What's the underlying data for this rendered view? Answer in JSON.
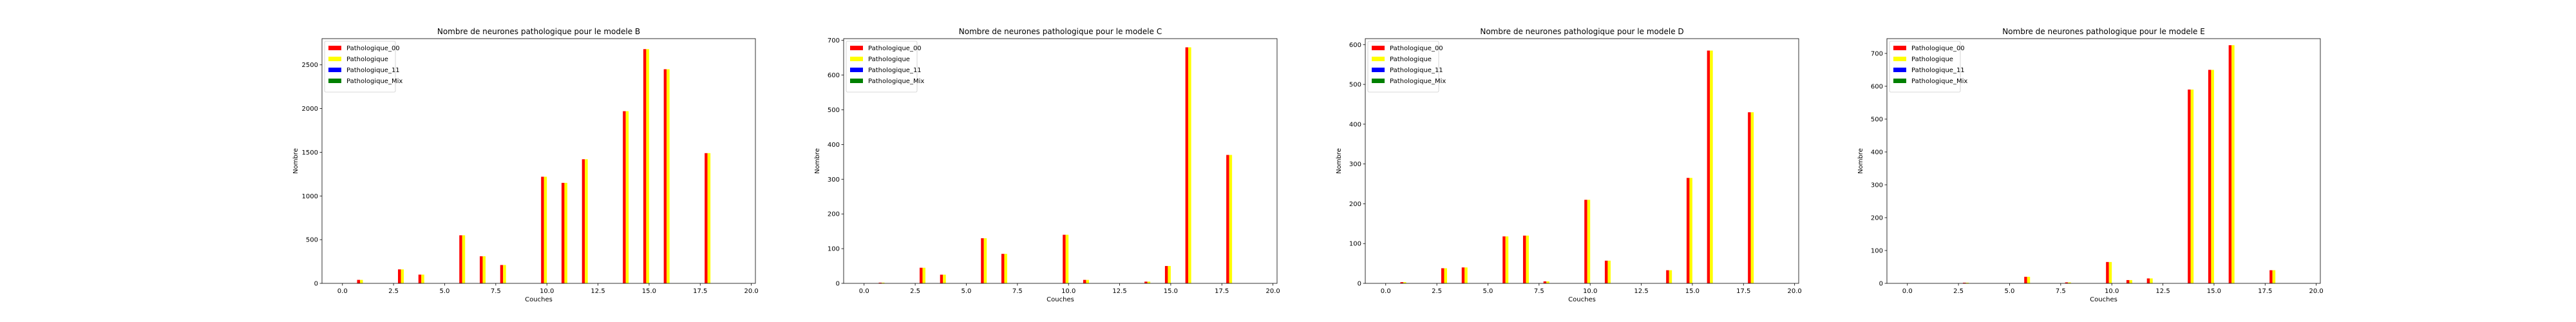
{
  "chart_data": [
    {
      "type": "bar",
      "title": "Nombre de neurones pathologique pour le modele B",
      "xlabel": "Couches",
      "ylabel": "Nombre",
      "xlim": [
        -1,
        20.2
      ],
      "ylim": [
        0,
        2800
      ],
      "xticks": [
        0,
        2.5,
        5,
        7.5,
        10,
        12.5,
        15,
        17.5,
        20
      ],
      "xtick_labels": [
        "0.0",
        "2.5",
        "5.0",
        "7.5",
        "10.0",
        "12.5",
        "15.0",
        "17.5",
        "20.0"
      ],
      "yticks": [
        0,
        500,
        1000,
        1500,
        2000,
        2500
      ],
      "ytick_labels": [
        "0",
        "500",
        "1000",
        "1500",
        "2000",
        "2500"
      ],
      "legend_position": "top-left",
      "layers": [
        0,
        1,
        2,
        3,
        4,
        5,
        6,
        7,
        8,
        9,
        10,
        11,
        12,
        13,
        14,
        15,
        16,
        17,
        18
      ],
      "series": [
        {
          "name": "Pathologique_00",
          "color": "#ff0000",
          "values": [
            0,
            40,
            0,
            160,
            100,
            0,
            550,
            310,
            210,
            0,
            1220,
            1150,
            1420,
            0,
            1970,
            2680,
            2450,
            0,
            1490
          ]
        },
        {
          "name": "Pathologique",
          "color": "#ffff00",
          "values": [
            0,
            40,
            0,
            160,
            100,
            0,
            550,
            310,
            210,
            0,
            1220,
            1150,
            1420,
            0,
            1970,
            2680,
            2450,
            0,
            1490
          ]
        },
        {
          "name": "Pathologique_11",
          "color": "#0000ff",
          "values": [
            0,
            0,
            0,
            0,
            0,
            0,
            0,
            0,
            0,
            0,
            0,
            0,
            0,
            0,
            0,
            0,
            0,
            0,
            0
          ]
        },
        {
          "name": "Pathologique_Mix",
          "color": "#008000",
          "values": [
            0,
            0,
            0,
            0,
            0,
            0,
            0,
            0,
            0,
            0,
            0,
            0,
            0,
            0,
            0,
            0,
            0,
            0,
            0
          ]
        }
      ]
    },
    {
      "type": "bar",
      "title": "Nombre de neurones pathologique pour le modele C",
      "xlabel": "Couches",
      "ylabel": "Nombre",
      "xlim": [
        -1,
        20.2
      ],
      "ylim": [
        0,
        705
      ],
      "xticks": [
        0,
        2.5,
        5,
        7.5,
        10,
        12.5,
        15,
        17.5,
        20
      ],
      "xtick_labels": [
        "0.0",
        "2.5",
        "5.0",
        "7.5",
        "10.0",
        "12.5",
        "15.0",
        "17.5",
        "20.0"
      ],
      "yticks": [
        0,
        100,
        200,
        300,
        400,
        500,
        600,
        700
      ],
      "ytick_labels": [
        "0",
        "100",
        "200",
        "300",
        "400",
        "500",
        "600",
        "700"
      ],
      "legend_position": "top-left",
      "layers": [
        0,
        1,
        2,
        3,
        4,
        5,
        6,
        7,
        8,
        9,
        10,
        11,
        12,
        13,
        14,
        15,
        16,
        17,
        18
      ],
      "series": [
        {
          "name": "Pathologique_00",
          "color": "#ff0000",
          "values": [
            0,
            2,
            0,
            45,
            25,
            0,
            130,
            85,
            0,
            0,
            140,
            10,
            0,
            0,
            5,
            50,
            680,
            0,
            370
          ]
        },
        {
          "name": "Pathologique",
          "color": "#ffff00",
          "values": [
            0,
            2,
            0,
            45,
            25,
            0,
            130,
            85,
            0,
            0,
            140,
            10,
            0,
            0,
            5,
            50,
            680,
            0,
            370
          ]
        },
        {
          "name": "Pathologique_11",
          "color": "#0000ff",
          "values": [
            0,
            0,
            0,
            0,
            0,
            0,
            0,
            0,
            0,
            0,
            0,
            0,
            0,
            0,
            0,
            0,
            0,
            0,
            0
          ]
        },
        {
          "name": "Pathologique_Mix",
          "color": "#008000",
          "values": [
            0,
            0,
            0,
            0,
            0,
            0,
            0,
            0,
            0,
            0,
            0,
            0,
            0,
            0,
            0,
            0,
            0,
            0,
            0
          ]
        }
      ]
    },
    {
      "type": "bar",
      "title": "Nombre de neurones pathologique pour le modele D",
      "xlabel": "Couches",
      "ylabel": "Nombre",
      "xlim": [
        -1,
        20.2
      ],
      "ylim": [
        0,
        615
      ],
      "xticks": [
        0,
        2.5,
        5,
        7.5,
        10,
        12.5,
        15,
        17.5,
        20
      ],
      "xtick_labels": [
        "0.0",
        "2.5",
        "5.0",
        "7.5",
        "10.0",
        "12.5",
        "15.0",
        "17.5",
        "20.0"
      ],
      "yticks": [
        0,
        100,
        200,
        300,
        400,
        500,
        600
      ],
      "ytick_labels": [
        "0",
        "100",
        "200",
        "300",
        "400",
        "500",
        "600"
      ],
      "legend_position": "top-left",
      "layers": [
        0,
        1,
        2,
        3,
        4,
        5,
        6,
        7,
        8,
        9,
        10,
        11,
        12,
        13,
        14,
        15,
        16,
        17,
        18
      ],
      "series": [
        {
          "name": "Pathologique_00",
          "color": "#ff0000",
          "values": [
            0,
            3,
            0,
            38,
            40,
            0,
            118,
            120,
            5,
            0,
            210,
            57,
            0,
            0,
            33,
            265,
            585,
            0,
            430
          ]
        },
        {
          "name": "Pathologique",
          "color": "#ffff00",
          "values": [
            0,
            3,
            0,
            38,
            40,
            0,
            118,
            120,
            5,
            0,
            210,
            57,
            0,
            0,
            33,
            265,
            585,
            0,
            430
          ]
        },
        {
          "name": "Pathologique_11",
          "color": "#0000ff",
          "values": [
            0,
            0,
            0,
            0,
            0,
            0,
            0,
            0,
            0,
            0,
            0,
            0,
            0,
            0,
            0,
            0,
            0,
            0,
            0
          ]
        },
        {
          "name": "Pathologique_Mix",
          "color": "#008000",
          "values": [
            0,
            0,
            0,
            0,
            0,
            0,
            0,
            0,
            0,
            0,
            0,
            0,
            0,
            0,
            0,
            0,
            0,
            0,
            0
          ]
        }
      ]
    },
    {
      "type": "bar",
      "title": "Nombre de neurones pathologique pour le modele E",
      "xlabel": "Couches",
      "ylabel": "Nombre",
      "xlim": [
        -1,
        20.2
      ],
      "ylim": [
        0,
        745
      ],
      "xticks": [
        0,
        2.5,
        5,
        7.5,
        10,
        12.5,
        15,
        17.5,
        20
      ],
      "xtick_labels": [
        "0.0",
        "2.5",
        "5.0",
        "7.5",
        "10.0",
        "12.5",
        "15.0",
        "17.5",
        "20.0"
      ],
      "yticks": [
        0,
        100,
        200,
        300,
        400,
        500,
        600,
        700
      ],
      "ytick_labels": [
        "0",
        "100",
        "200",
        "300",
        "400",
        "500",
        "600",
        "700"
      ],
      "legend_position": "top-left",
      "layers": [
        0,
        1,
        2,
        3,
        4,
        5,
        6,
        7,
        8,
        9,
        10,
        11,
        12,
        13,
        14,
        15,
        16,
        17,
        18
      ],
      "series": [
        {
          "name": "Pathologique_00",
          "color": "#ff0000",
          "values": [
            0,
            0,
            0,
            2,
            0,
            0,
            20,
            0,
            3,
            0,
            65,
            10,
            15,
            0,
            590,
            650,
            725,
            0,
            40
          ]
        },
        {
          "name": "Pathologique",
          "color": "#ffff00",
          "values": [
            0,
            0,
            0,
            2,
            0,
            0,
            20,
            0,
            3,
            0,
            65,
            10,
            15,
            0,
            590,
            650,
            725,
            0,
            40
          ]
        },
        {
          "name": "Pathologique_11",
          "color": "#0000ff",
          "values": [
            0,
            0,
            0,
            0,
            0,
            0,
            0,
            0,
            0,
            0,
            0,
            0,
            0,
            0,
            0,
            0,
            0,
            0,
            0
          ]
        },
        {
          "name": "Pathologique_Mix",
          "color": "#008000",
          "values": [
            0,
            0,
            0,
            0,
            0,
            0,
            0,
            0,
            0,
            0,
            0,
            0,
            0,
            0,
            0,
            0,
            0,
            0,
            0
          ]
        }
      ]
    }
  ]
}
